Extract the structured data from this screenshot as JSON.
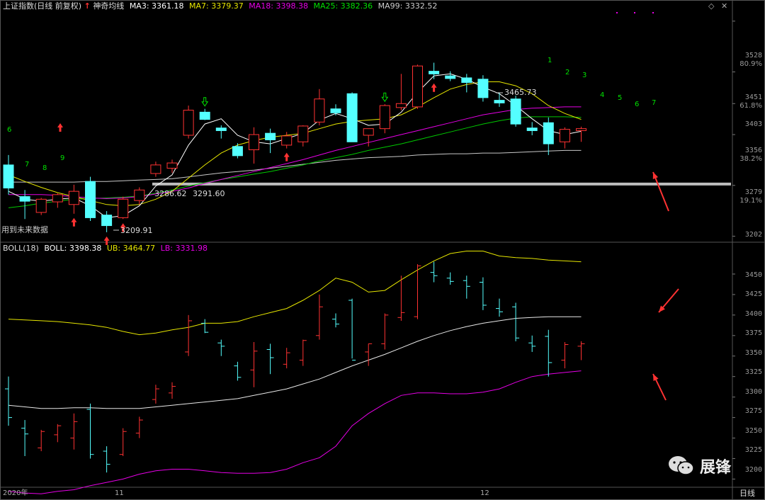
{
  "top_panel": {
    "index_name": "上证指数",
    "mode": "(日线 前复权)",
    "indicator": "神奇均线",
    "ma3": "MA3: 3361.18",
    "ma7": "MA7: 3379.37",
    "ma18": "MA18: 3398.38",
    "ma25": "MA25: 3382.36",
    "ma99": "MA99: 3332.52",
    "note": "用到未来数据",
    "low_label": "3209.91",
    "high_label": "3465.73",
    "label_a": "3286.62",
    "label_b": "3291.60"
  },
  "bottom_panel": {
    "indicator": "BOLL(18)",
    "boll": "BOLL: 3398.38",
    "ub": "UB: 3464.77",
    "lb": "LB: 3331.98"
  },
  "x_axis": {
    "year": "2020年",
    "m11": "11",
    "m12": "12",
    "period": "日线"
  },
  "watermark": {
    "text": "展锋",
    "icon": "wechat-icon"
  },
  "colors": {
    "up": "#ff3232",
    "down": "#54ffff",
    "ma3": "#ffffff",
    "ma7": "#e6e600",
    "ma18": "#e600e6",
    "ma25": "#00c800",
    "ma99": "#c8c8c8",
    "support": "#bdbdbd",
    "arrow": "#ff3232",
    "td": "#00e000"
  },
  "chart_data": [
    {
      "type": "candlestick",
      "title": "上证指数 (日线 前复权)",
      "y_ticks": [
        3202,
        3279,
        3356,
        3403,
        3451,
        3528
      ],
      "y_tick_labels": [
        "3202",
        "3279",
        "3356",
        "3403",
        "3451",
        "3528"
      ],
      "pct_labels": [
        "80.9%",
        "61.8%",
        "38.2%",
        "19.1%"
      ],
      "pct_values": [
        3528,
        3451,
        3356,
        3279
      ],
      "ylim": [
        3195,
        3545
      ],
      "support_line": 3281,
      "ohlc": [
        [
          3310,
          3325,
          3265,
          3275
        ],
        [
          3262,
          3272,
          3228,
          3255
        ],
        [
          3238,
          3260,
          3234,
          3258
        ],
        [
          3254,
          3267,
          3245,
          3265
        ],
        [
          3250,
          3280,
          3236,
          3270
        ],
        [
          3285,
          3292,
          3225,
          3230
        ],
        [
          3234,
          3240,
          3208,
          3218
        ],
        [
          3230,
          3262,
          3228,
          3258
        ],
        [
          3256,
          3276,
          3250,
          3272
        ],
        [
          3297,
          3315,
          3292,
          3310
        ],
        [
          3305,
          3318,
          3298,
          3313
        ],
        [
          3355,
          3400,
          3350,
          3393
        ],
        [
          3390,
          3395,
          3378,
          3379
        ],
        [
          3366,
          3370,
          3350,
          3362
        ],
        [
          3338,
          3343,
          3320,
          3324
        ],
        [
          3333,
          3367,
          3312,
          3356
        ],
        [
          3358,
          3365,
          3328,
          3348
        ],
        [
          3340,
          3360,
          3335,
          3354
        ],
        [
          3345,
          3370,
          3338,
          3369
        ],
        [
          3375,
          3425,
          3370,
          3410
        ],
        [
          3395,
          3402,
          3385,
          3389
        ],
        [
          3418,
          3420,
          3347,
          3345
        ],
        [
          3355,
          3365,
          3338,
          3365
        ],
        [
          3365,
          3402,
          3358,
          3400
        ],
        [
          3397,
          3448,
          3393,
          3403
        ],
        [
          3398,
          3462,
          3395,
          3460
        ],
        [
          3452,
          3465,
          3440,
          3448
        ],
        [
          3445,
          3452,
          3437,
          3441
        ],
        [
          3442,
          3448,
          3420,
          3435
        ],
        [
          3440,
          3446,
          3406,
          3412
        ],
        [
          3408,
          3420,
          3398,
          3404
        ],
        [
          3410,
          3415,
          3368,
          3372
        ],
        [
          3366,
          3375,
          3355,
          3362
        ],
        [
          3374,
          3382,
          3325,
          3342
        ],
        [
          3345,
          3367,
          3335,
          3364
        ],
        [
          3362,
          3368,
          3345,
          3365
        ]
      ],
      "ma3": [
        3270,
        3258,
        3255,
        3258,
        3260,
        3248,
        3230,
        3233,
        3248,
        3278,
        3295,
        3340,
        3372,
        3380,
        3355,
        3345,
        3342,
        3350,
        3358,
        3378,
        3388,
        3380,
        3370,
        3372,
        3390,
        3420,
        3445,
        3448,
        3440,
        3428,
        3418,
        3400,
        3380,
        3362,
        3356,
        3361
      ],
      "ma7": [
        3295,
        3285,
        3276,
        3268,
        3262,
        3256,
        3250,
        3248,
        3250,
        3258,
        3270,
        3290,
        3310,
        3328,
        3340,
        3347,
        3352,
        3355,
        3358,
        3365,
        3372,
        3376,
        3378,
        3380,
        3386,
        3398,
        3412,
        3425,
        3432,
        3436,
        3436,
        3430,
        3418,
        3400,
        3388,
        3379
      ],
      "ma18": [
        3265,
        3265,
        3265,
        3264,
        3262,
        3260,
        3259,
        3260,
        3262,
        3266,
        3270,
        3275,
        3282,
        3288,
        3294,
        3300,
        3306,
        3312,
        3318,
        3325,
        3332,
        3338,
        3344,
        3350,
        3356,
        3362,
        3368,
        3374,
        3380,
        3386,
        3390,
        3394,
        3396,
        3397,
        3398,
        3398
      ],
      "ma25": [
        3245,
        3248,
        3252,
        3255,
        3258,
        3259,
        3260,
        3261,
        3263,
        3267,
        3272,
        3278,
        3283,
        3288,
        3292,
        3296,
        3300,
        3305,
        3310,
        3316,
        3321,
        3326,
        3332,
        3337,
        3342,
        3348,
        3354,
        3360,
        3366,
        3372,
        3377,
        3381,
        3383,
        3383,
        3383,
        3382
      ],
      "ma99": [
        3284,
        3284,
        3284,
        3284,
        3284,
        3285,
        3285,
        3286,
        3287,
        3288,
        3289,
        3292,
        3295,
        3298,
        3300,
        3302,
        3305,
        3308,
        3311,
        3314,
        3317,
        3319,
        3321,
        3322,
        3323,
        3325,
        3326,
        3327,
        3327,
        3328,
        3328,
        3329,
        3330,
        3331,
        3332,
        3332
      ]
    },
    {
      "type": "bollinger-ohlc",
      "title": "BOLL(18)",
      "y_ticks": [
        3200,
        3225,
        3250,
        3275,
        3300,
        3325,
        3350,
        3375,
        3400,
        3425,
        3450
      ],
      "y_tick_labels": [
        "3200",
        "3225",
        "3250",
        "3275",
        "3300",
        "3325",
        "3350",
        "3375",
        "3400",
        "3425",
        "3450"
      ],
      "ylim": [
        3190,
        3475
      ],
      "mid": [
        3290,
        3288,
        3286,
        3286,
        3287,
        3287,
        3286,
        3286,
        3286,
        3288,
        3290,
        3292,
        3294,
        3296,
        3298,
        3302,
        3306,
        3310,
        3316,
        3322,
        3330,
        3338,
        3345,
        3352,
        3360,
        3368,
        3375,
        3381,
        3386,
        3390,
        3393,
        3396,
        3397,
        3398,
        3398,
        3398
      ],
      "upper": [
        3395,
        3394,
        3393,
        3392,
        3390,
        3388,
        3385,
        3380,
        3376,
        3378,
        3382,
        3385,
        3390,
        3390,
        3392,
        3398,
        3403,
        3408,
        3418,
        3430,
        3445,
        3440,
        3428,
        3430,
        3443,
        3455,
        3466,
        3475,
        3478,
        3478,
        3472,
        3470,
        3469,
        3467,
        3466,
        3465
      ],
      "lower": [
        3185,
        3183,
        3182,
        3185,
        3187,
        3192,
        3196,
        3200,
        3206,
        3210,
        3212,
        3212,
        3210,
        3208,
        3207,
        3207,
        3208,
        3212,
        3220,
        3226,
        3240,
        3265,
        3280,
        3292,
        3302,
        3305,
        3305,
        3304,
        3304,
        3306,
        3310,
        3318,
        3325,
        3328,
        3330,
        3332
      ]
    }
  ]
}
